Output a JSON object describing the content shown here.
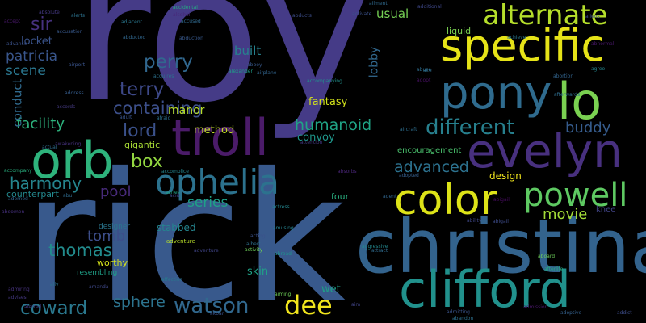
{
  "words": [
    {
      "text": "roy",
      "color": "#453b87"
    },
    {
      "text": "rick",
      "color": "#38598c"
    },
    {
      "text": "christina",
      "color": "#33638d"
    },
    {
      "text": "specific",
      "color": "#e6e318"
    },
    {
      "text": "troll",
      "color": "#4b1b69"
    },
    {
      "text": "orb",
      "color": "#2eb37c"
    },
    {
      "text": "evelyn",
      "color": "#48307f"
    },
    {
      "text": "clifford",
      "color": "#21918c"
    },
    {
      "text": "pony",
      "color": "#2f6b8e"
    },
    {
      "text": "color",
      "color": "#dde318"
    },
    {
      "text": "lo",
      "color": "#7ad151"
    },
    {
      "text": "alternate",
      "color": "#b5de2b"
    },
    {
      "text": "ophelia",
      "color": "#2c728e"
    },
    {
      "text": "powell",
      "color": "#5ec962"
    },
    {
      "text": "different",
      "color": "#27808e"
    },
    {
      "text": "watson",
      "color": "#31688e"
    },
    {
      "text": "dee",
      "color": "#f1e51d"
    },
    {
      "text": "coward",
      "color": "#2a788e"
    },
    {
      "text": "harmony",
      "color": "#25858e"
    },
    {
      "text": "thomas",
      "color": "#228c8d"
    },
    {
      "text": "facility",
      "color": "#2db27d"
    },
    {
      "text": "perry",
      "color": "#31678e"
    },
    {
      "text": "terry",
      "color": "#3e4989"
    },
    {
      "text": "lord",
      "color": "#3b518b"
    },
    {
      "text": "box",
      "color": "#93d741"
    },
    {
      "text": "containing",
      "color": "#3c4f8a"
    },
    {
      "text": "humanoid",
      "color": "#20a486"
    },
    {
      "text": "advanced",
      "color": "#2c718e"
    },
    {
      "text": "movie",
      "color": "#a2da37"
    },
    {
      "text": "buddy",
      "color": "#365c8d"
    },
    {
      "text": "series",
      "color": "#1fa088"
    },
    {
      "text": "pool",
      "color": "#472a7a"
    },
    {
      "text": "tomb",
      "color": "#3d4e8a"
    },
    {
      "text": "sphere",
      "color": "#2c738e"
    },
    {
      "text": "sir",
      "color": "#46317e"
    },
    {
      "text": "patricia",
      "color": "#39568c"
    },
    {
      "text": "scene",
      "color": "#2a768e"
    },
    {
      "text": "conduct",
      "color": "#306a8e"
    },
    {
      "text": "locket",
      "color": "#3a538b"
    },
    {
      "text": "usual",
      "color": "#75d054"
    },
    {
      "text": "liquid",
      "color": "#7ad151"
    },
    {
      "text": "built",
      "color": "#26828e"
    },
    {
      "text": "lobby",
      "color": "#31688e"
    },
    {
      "text": "fantasy",
      "color": "#d2e21b"
    },
    {
      "text": "manor",
      "color": "#b8de29"
    },
    {
      "text": "method",
      "color": "#c2df23"
    },
    {
      "text": "gigantic",
      "color": "#a8db34"
    },
    {
      "text": "convoy",
      "color": "#1f968b"
    },
    {
      "text": "encouragement",
      "color": "#4ac16d"
    },
    {
      "text": "design",
      "color": "#f1e51d"
    },
    {
      "text": "four",
      "color": "#29af7f"
    },
    {
      "text": "knee",
      "color": "#414487"
    },
    {
      "text": "stabbed",
      "color": "#25848e"
    },
    {
      "text": "worthy",
      "color": "#d5e21a"
    },
    {
      "text": "skin",
      "color": "#1fa287"
    },
    {
      "text": "wet",
      "color": "#1f9f88"
    },
    {
      "text": "counterpart",
      "color": "#23898e"
    },
    {
      "text": "designer",
      "color": "#2a768e"
    },
    {
      "text": "resembling",
      "color": "#1fa188"
    },
    {
      "text": "adventure",
      "color": "#b8de29"
    },
    {
      "text": "series",
      "color": "#21a685"
    },
    {
      "text": "accompany",
      "color": "#29af7f"
    },
    {
      "text": "abigail",
      "color": "#3e4c8a"
    },
    {
      "text": "albert",
      "color": "#2e6f8e"
    },
    {
      "text": "alexander",
      "color": "#1f9f88"
    },
    {
      "text": "airplane",
      "color": "#32658e"
    },
    {
      "text": "activity",
      "color": "#6ece58"
    },
    {
      "text": "aircraft",
      "color": "#2e6e8e"
    },
    {
      "text": "aggressive",
      "color": "#23888e"
    },
    {
      "text": "additional",
      "color": "#3f4889"
    },
    {
      "text": "absorbs",
      "color": "#482576"
    },
    {
      "text": "abduction",
      "color": "#38598c"
    },
    {
      "text": "activate",
      "color": "#3b528b"
    },
    {
      "text": "acquires",
      "color": "#2c728e"
    },
    {
      "text": "admitting",
      "color": "#3a548c"
    },
    {
      "text": "accidental",
      "color": "#25ab82"
    },
    {
      "text": "adoptive",
      "color": "#34618d"
    },
    {
      "text": "addict",
      "color": "#3d4d8a"
    },
    {
      "text": "attention",
      "color": "#443983"
    },
    {
      "text": "affection",
      "color": "#29798e"
    },
    {
      "text": "achieve",
      "color": "#2a778e"
    },
    {
      "text": "accept",
      "color": "#48186a"
    },
    {
      "text": "abuse",
      "color": "#2e6d8e"
    },
    {
      "text": "alerted",
      "color": "#433e85"
    },
    {
      "text": "aliens",
      "color": "#3e4989"
    },
    {
      "text": "alcohol",
      "color": "#482979"
    },
    {
      "text": "adopt",
      "color": "#471063"
    },
    {
      "text": "abortion",
      "color": "#32648e"
    },
    {
      "text": "abducts",
      "color": "#3d4e8a"
    },
    {
      "text": "accords",
      "color": "#44397f"
    },
    {
      "text": "accused",
      "color": "#306a8e"
    },
    {
      "text": "accompanying",
      "color": "#21918c"
    },
    {
      "text": "acid",
      "color": "#3e4a89"
    },
    {
      "text": "adjacent",
      "color": "#2a778e"
    },
    {
      "text": "admiring",
      "color": "#46327e"
    },
    {
      "text": "airport",
      "color": "#3a548c"
    },
    {
      "text": "address",
      "color": "#365d8d"
    },
    {
      "text": "agent",
      "color": "#31668e"
    },
    {
      "text": "abbey",
      "color": "#38598c"
    },
    {
      "text": "aiming",
      "color": "#6ece58"
    },
    {
      "text": "ability",
      "color": "#3f4788"
    },
    {
      "text": "abigail",
      "color": "#460b5e"
    },
    {
      "text": "abandon",
      "color": "#2d708e"
    },
    {
      "text": "actress",
      "color": "#24868e"
    },
    {
      "text": "actual",
      "color": "#2f6c8e"
    },
    {
      "text": "adventure",
      "color": "#404588"
    },
    {
      "text": "afraid",
      "color": "#2c718e"
    },
    {
      "text": "acting",
      "color": "#3b528b"
    },
    {
      "text": "abroad",
      "color": "#20928c"
    },
    {
      "text": "aboard",
      "color": "#6ccd5a"
    },
    {
      "text": "attract",
      "color": "#2f6b8e"
    },
    {
      "text": "afterlife",
      "color": "#25ab82"
    },
    {
      "text": "advises",
      "color": "#453882"
    },
    {
      "text": "adopted",
      "color": "#355f8d"
    },
    {
      "text": "awakening",
      "color": "#46327e"
    },
    {
      "text": "admission",
      "color": "#481668"
    },
    {
      "text": "amusing",
      "color": "#26828e"
    },
    {
      "text": "alerts",
      "color": "#2c728e"
    },
    {
      "text": "abnormal",
      "color": "#48186a"
    },
    {
      "text": "absolute",
      "color": "#443983"
    },
    {
      "text": "accusation",
      "color": "#38598c"
    },
    {
      "text": "adorned",
      "color": "#32658e"
    },
    {
      "text": "afterwards",
      "color": "#2e6d8e"
    },
    {
      "text": "ace",
      "color": "#2e6e8e"
    },
    {
      "text": "advance",
      "color": "#3b528b"
    },
    {
      "text": "ailment",
      "color": "#306a8e"
    },
    {
      "text": "adult",
      "color": "#3a548c"
    },
    {
      "text": "abducted",
      "color": "#31678e"
    },
    {
      "text": "accomplice",
      "color": "#25848e"
    },
    {
      "text": "abdomen",
      "color": "#46307e"
    },
    {
      "text": "abu",
      "color": "#2f6b8e"
    },
    {
      "text": "aim",
      "color": "#414487"
    },
    {
      "text": "ally",
      "color": "#2b758e"
    },
    {
      "text": "amanda",
      "color": "#3f4889"
    },
    {
      "text": "agree",
      "color": "#24868e"
    },
    {
      "text": "akbar",
      "color": "#3a548c"
    }
  ]
}
